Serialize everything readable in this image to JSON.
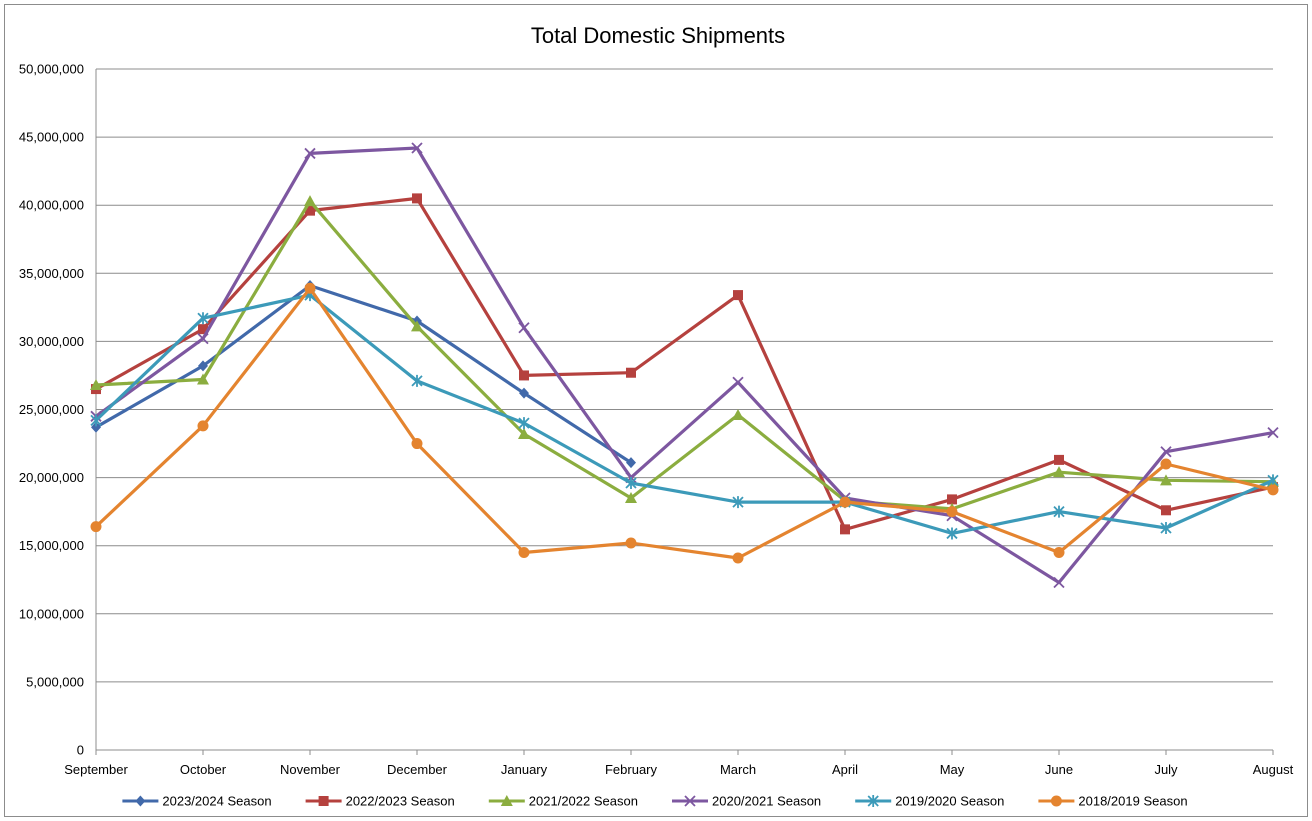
{
  "chart_data": {
    "type": "line",
    "title": "Total Domestic Shipments",
    "xlabel": "",
    "ylabel": "",
    "ylim": [
      0,
      50000000
    ],
    "yticks": [
      0,
      5000000,
      10000000,
      15000000,
      20000000,
      25000000,
      30000000,
      35000000,
      40000000,
      45000000,
      50000000
    ],
    "ytick_labels": [
      "0",
      "5,000,000",
      "10,000,000",
      "15,000,000",
      "20,000,000",
      "25,000,000",
      "30,000,000",
      "35,000,000",
      "40,000,000",
      "45,000,000",
      "50,000,000"
    ],
    "grid": true,
    "legend_position": "bottom",
    "categories": [
      "September",
      "October",
      "November",
      "December",
      "January",
      "February",
      "March",
      "April",
      "May",
      "June",
      "July",
      "August"
    ],
    "series": [
      {
        "name": "2023/2024 Season",
        "color": "#4169aa",
        "marker": "diamond",
        "values": [
          23700000,
          28200000,
          34100000,
          31500000,
          26200000,
          21100000,
          null,
          null,
          null,
          null,
          null,
          null
        ]
      },
      {
        "name": "2022/2023 Season",
        "color": "#b5413e",
        "marker": "square",
        "values": [
          26500000,
          30900000,
          39600000,
          40500000,
          27500000,
          27700000,
          33400000,
          16200000,
          18400000,
          21300000,
          17600000,
          19300000
        ]
      },
      {
        "name": "2021/2022 Season",
        "color": "#8bad3f",
        "marker": "triangle",
        "values": [
          26800000,
          27200000,
          40300000,
          31100000,
          23200000,
          18500000,
          24600000,
          18300000,
          17700000,
          20400000,
          19800000,
          19700000
        ]
      },
      {
        "name": "2020/2021 Season",
        "color": "#7d57a0",
        "marker": "x",
        "values": [
          24500000,
          30200000,
          43800000,
          44200000,
          31000000,
          20000000,
          27000000,
          18500000,
          17200000,
          12300000,
          21900000,
          23300000
        ]
      },
      {
        "name": "2019/2020 Season",
        "color": "#3c9ab9",
        "marker": "star",
        "values": [
          24200000,
          31700000,
          33400000,
          27100000,
          24000000,
          19600000,
          18200000,
          18200000,
          15900000,
          17500000,
          16300000,
          19800000
        ]
      },
      {
        "name": "2018/2019 Season",
        "color": "#e4842f",
        "marker": "circle",
        "values": [
          16400000,
          23800000,
          33900000,
          22500000,
          14500000,
          15200000,
          14100000,
          18200000,
          17500000,
          14500000,
          21000000,
          19100000
        ]
      }
    ]
  }
}
